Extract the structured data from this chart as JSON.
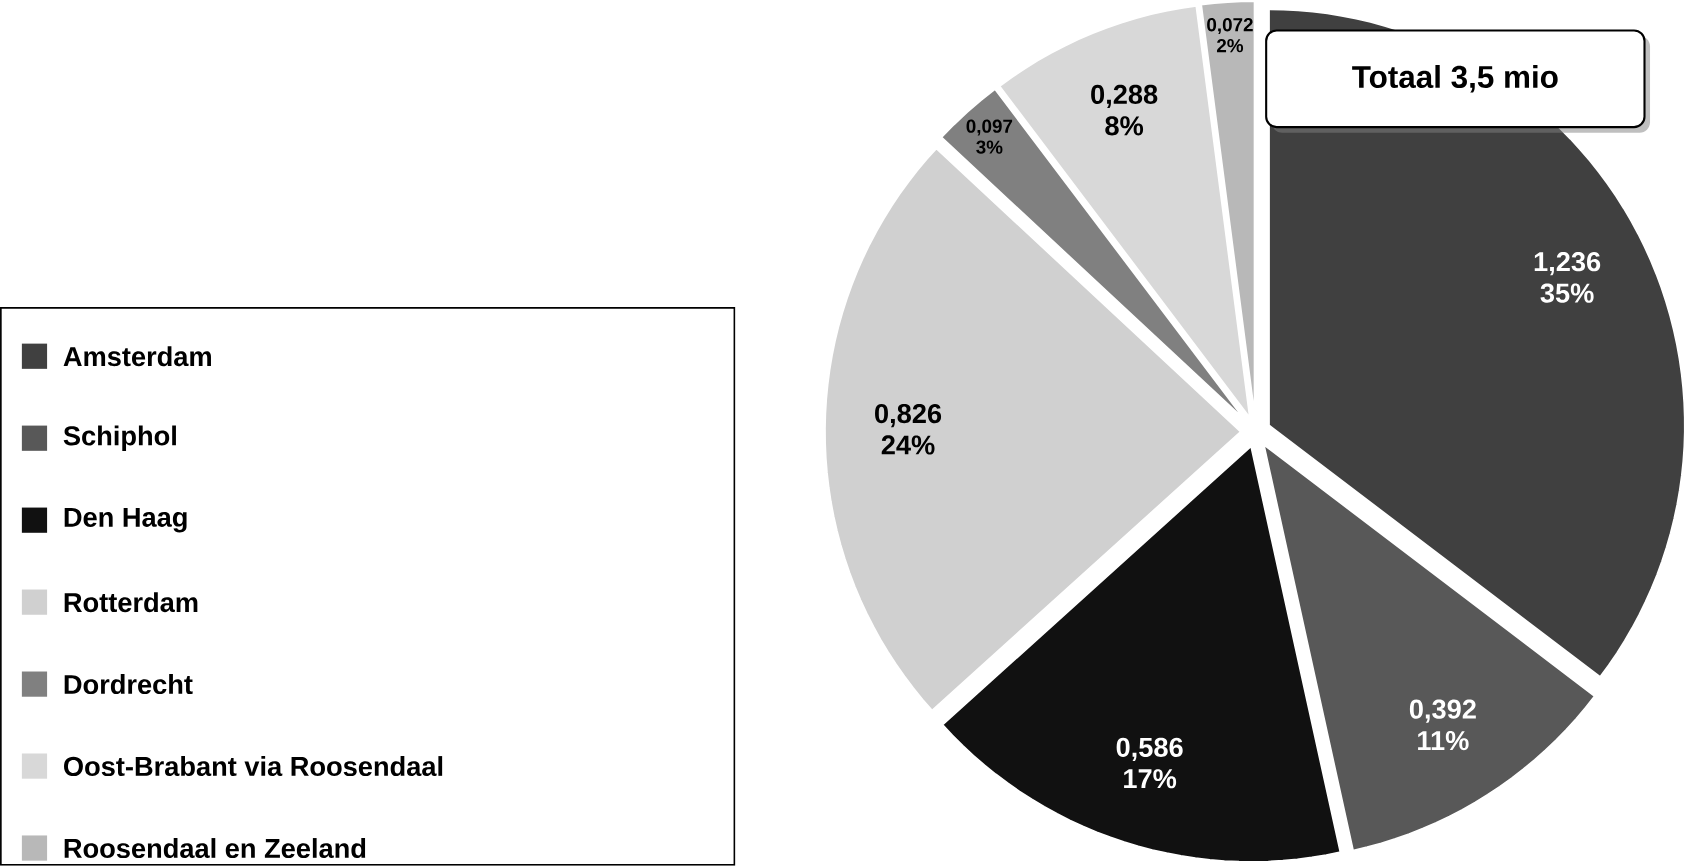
{
  "chart_data": {
    "type": "pie",
    "categories": [
      "Amsterdam",
      "Schiphol",
      "Den Haag",
      "Rotterdam",
      "Dordrecht",
      "Oost-Brabant via Roosendaal",
      "Roosendaal en Zeeland"
    ],
    "values": [
      1.236,
      0.392,
      0.586,
      0.826,
      0.097,
      0.288,
      0.072
    ],
    "value_labels": [
      "1,236 35%",
      "0,392 11%",
      "0,586 17%",
      "0,826 24%",
      "0,097 3%",
      "0,288 8%",
      "0,072 2%"
    ],
    "colors": [
      "#404040",
      "#585858",
      "#111111",
      "#d0d0d0",
      "#808080",
      "#d8d8d8",
      "#b8b8b8"
    ],
    "annotations": [
      "Totaal 3,5 mio"
    ],
    "legend": "left"
  }
}
